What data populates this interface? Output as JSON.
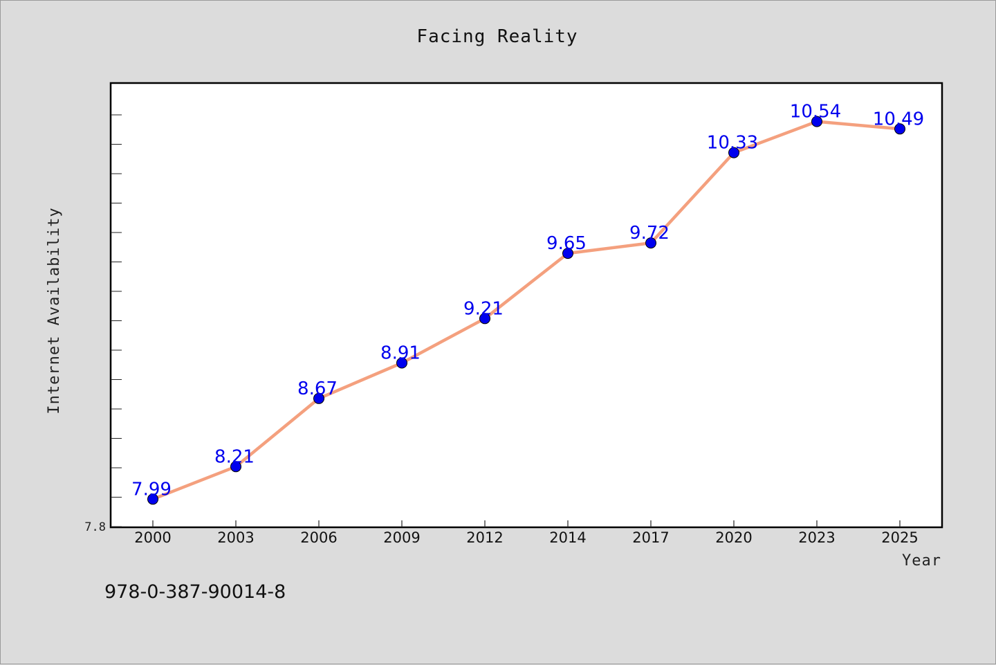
{
  "chart_data": {
    "type": "line",
    "title": "Facing Reality",
    "xlabel": "Year",
    "ylabel": "Internet Availability",
    "categories": [
      "2000",
      "2003",
      "2006",
      "2009",
      "2012",
      "2014",
      "2017",
      "2020",
      "2023",
      "2025"
    ],
    "series": [
      {
        "values": [
          7.99,
          8.21,
          8.67,
          8.91,
          9.21,
          9.65,
          9.72,
          10.33,
          10.54,
          10.49
        ],
        "labels": [
          "7.99",
          "8.21",
          "8.67",
          "8.91",
          "9.21",
          "9.65",
          "9.72",
          "10.33",
          "10.54",
          "10.49"
        ],
        "line_color": "#f4a07e",
        "marker_color": "#0000ee",
        "label_color": "#0000ee"
      }
    ],
    "ylim": [
      7.8,
      10.8
    ],
    "y_tick_labels": [
      "7.8"
    ],
    "grid": false,
    "legend": "none"
  },
  "footer_text": "978-0-387-90014-8"
}
